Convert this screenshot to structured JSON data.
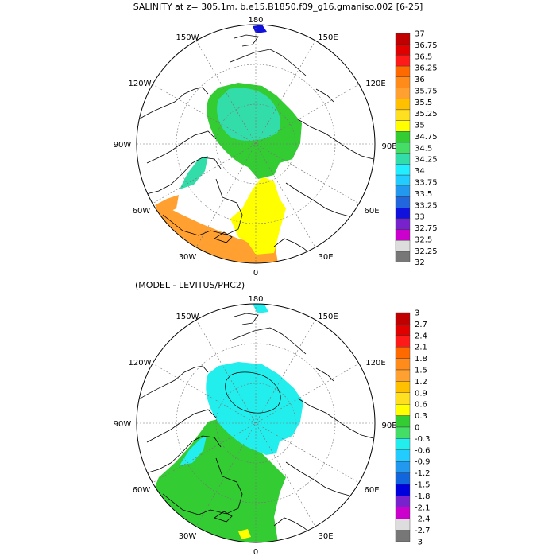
{
  "top_panel": {
    "title": "SALINITY at z= 305.1m, b.e15.B1850.f09_g16.gmaniso.002 [6-25]",
    "lon_labels": {
      "top": "180",
      "tl": "150W",
      "tr": "150E",
      "ul": "120W",
      "ur": "120E",
      "l": "90W",
      "r": "90E",
      "ll": "60W",
      "lr": "60E",
      "bl": "30W",
      "br": "30E",
      "bottom": "0"
    },
    "colorbar": {
      "labels": [
        "37",
        "36.75",
        "36.5",
        "36.25",
        "36",
        "35.75",
        "35.5",
        "35.25",
        "35",
        "34.75",
        "34.5",
        "34.25",
        "34",
        "33.75",
        "33.5",
        "33.25",
        "33",
        "32.75",
        "32.5",
        "32.25",
        "32"
      ],
      "colors": [
        "#c00000",
        "#e00000",
        "#ff1a1a",
        "#ff6a00",
        "#ff8c1a",
        "#ffa030",
        "#ffc000",
        "#ffe020",
        "#ffff00",
        "#33cc33",
        "#44dd66",
        "#33ddaa",
        "#22eeff",
        "#22ccff",
        "#2299ee",
        "#2266dd",
        "#1111dd",
        "#7722cc",
        "#cc00cc",
        "#dddddd",
        "#777777"
      ]
    }
  },
  "bottom_panel": {
    "title": "(MODEL - LEVITUS/PHC2)",
    "lon_labels": {
      "top": "180",
      "tl": "150W",
      "tr": "150E",
      "ul": "120W",
      "ur": "120E",
      "l": "90W",
      "r": "90E",
      "ll": "60W",
      "lr": "60E",
      "bl": "30W",
      "br": "30E",
      "bottom": "0"
    },
    "colorbar": {
      "labels": [
        "3",
        "2.7",
        "2.4",
        "2.1",
        "1.8",
        "1.5",
        "1.2",
        "0.9",
        "0.6",
        "0.3",
        "0",
        "-0.3",
        "-0.6",
        "-0.9",
        "-1.2",
        "-1.5",
        "-1.8",
        "-2.1",
        "-2.4",
        "-2.7",
        "-3"
      ],
      "colors": [
        "#c00000",
        "#e00000",
        "#ff1a1a",
        "#ff6a00",
        "#ff8c1a",
        "#ffa030",
        "#ffc000",
        "#ffe020",
        "#ffff00",
        "#33cc33",
        "#44dd66",
        "#22eeee",
        "#22ccff",
        "#2299ee",
        "#1166dd",
        "#0000dd",
        "#7722cc",
        "#cc00cc",
        "#dddddd",
        "#777777"
      ]
    }
  }
}
